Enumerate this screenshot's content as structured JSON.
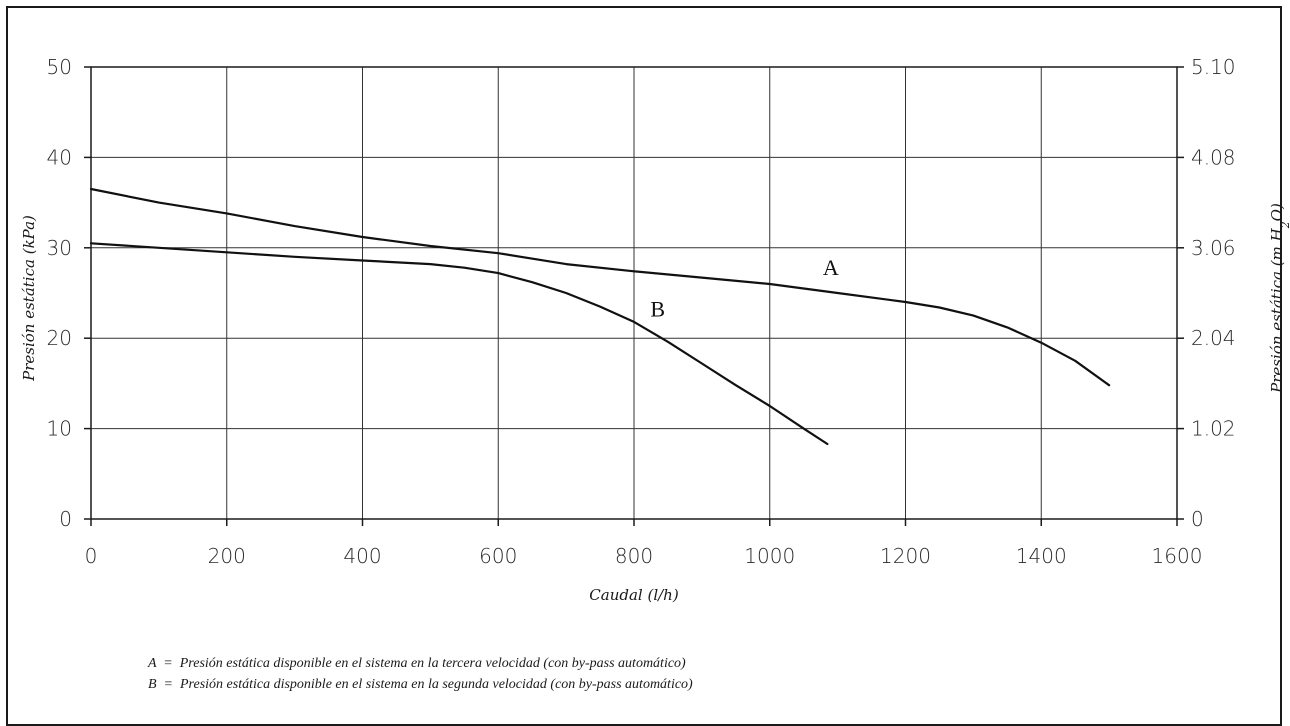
{
  "chart_data": {
    "type": "line",
    "xlabel": "Caudal (l/h)",
    "ylabel_left": "Presión estática (kPa)",
    "ylabel_right_prefix": "Presión estática (m H",
    "ylabel_right_sub": "2",
    "ylabel_right_suffix": "O)",
    "xlim": [
      0,
      1600
    ],
    "ylim": [
      0,
      50
    ],
    "x_ticks": [
      0,
      200,
      400,
      600,
      800,
      1000,
      1200,
      1400,
      1600
    ],
    "y_ticks_left": [
      0,
      10,
      20,
      30,
      40,
      50
    ],
    "y_ticks_right": [
      "0",
      "1.02",
      "2.04",
      "3.06",
      "4.08",
      "5.10"
    ],
    "grid": true,
    "series": [
      {
        "name": "A",
        "x": [
          0,
          100,
          200,
          300,
          400,
          500,
          600,
          700,
          800,
          900,
          1000,
          1100,
          1200,
          1250,
          1300,
          1350,
          1400,
          1450,
          1500
        ],
        "y": [
          36.5,
          35.0,
          33.8,
          32.4,
          31.2,
          30.2,
          29.4,
          28.2,
          27.4,
          26.7,
          26.0,
          25.0,
          24.0,
          23.4,
          22.5,
          21.2,
          19.5,
          17.5,
          14.8
        ]
      },
      {
        "name": "B",
        "x": [
          0,
          100,
          200,
          300,
          400,
          500,
          550,
          600,
          650,
          700,
          750,
          800,
          850,
          900,
          950,
          1000,
          1050,
          1085
        ],
        "y": [
          30.5,
          30.0,
          29.5,
          29.0,
          28.6,
          28.2,
          27.8,
          27.2,
          26.2,
          25.0,
          23.5,
          21.8,
          19.6,
          17.2,
          14.8,
          12.5,
          10.0,
          8.3
        ]
      }
    ],
    "legend": [
      {
        "key": "A",
        "text": "A  =  Presión estática disponible en el sistema en la tercera velocidad (con by-pass automático)"
      },
      {
        "key": "B",
        "text": "B  =  Presión estática disponible en el sistema en la segunda velocidad (con by-pass automático)"
      }
    ]
  }
}
